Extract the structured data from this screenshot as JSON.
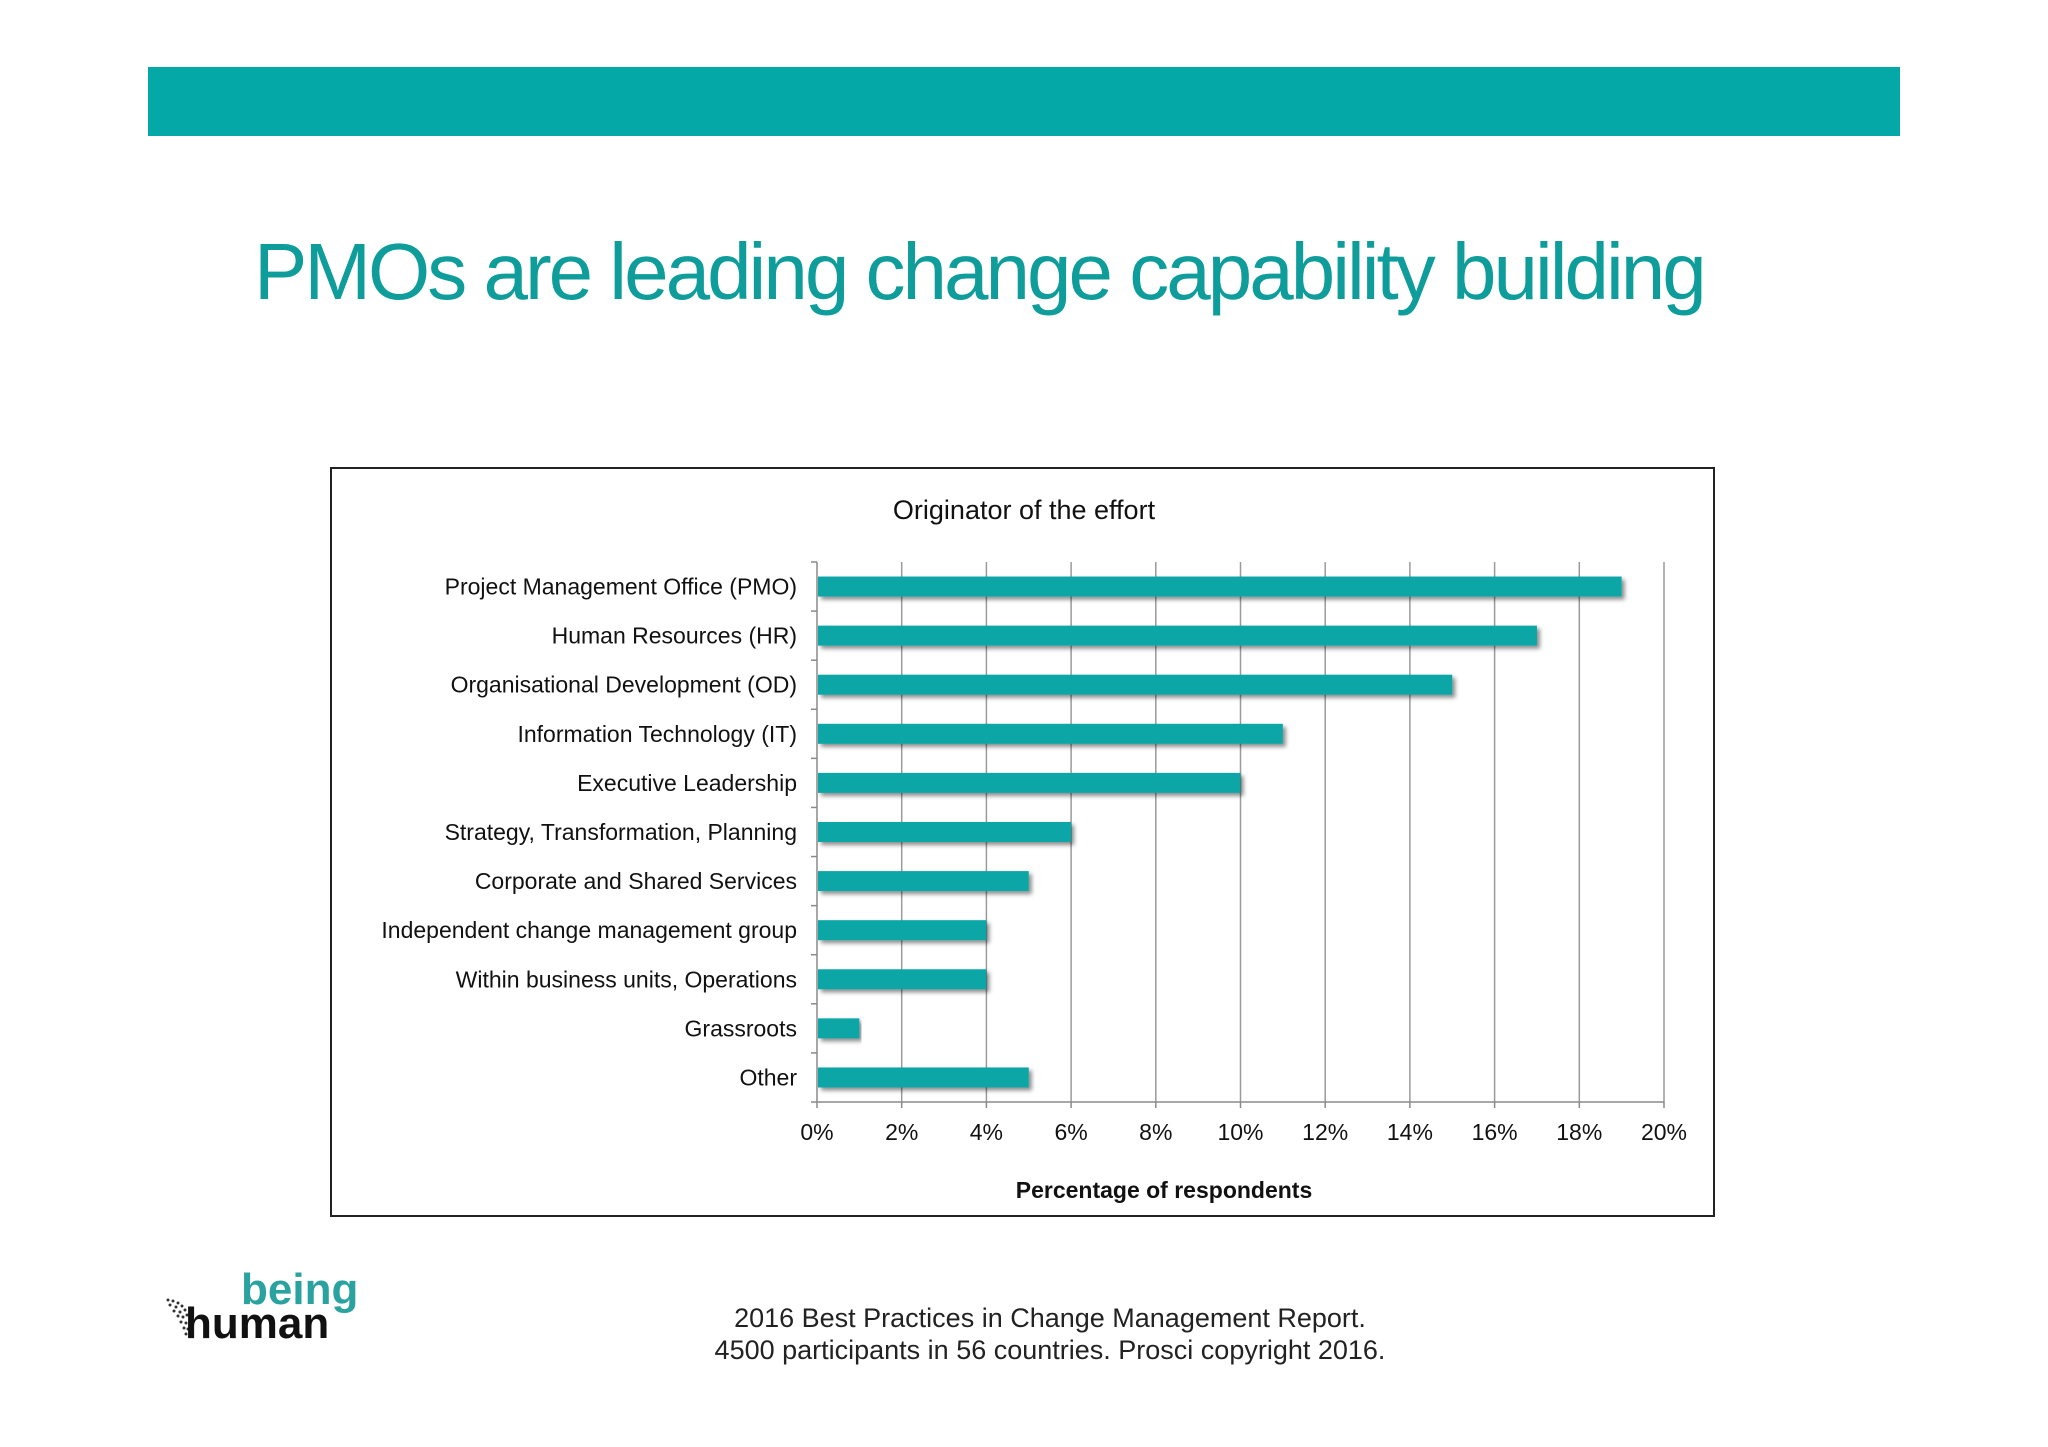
{
  "slide": {
    "title": "PMOs are leading change capability building",
    "accent_color": "#03a8a7",
    "title_color": "#0f9d9b"
  },
  "logo": {
    "word1": "being",
    "word2": "human"
  },
  "source": {
    "line1": "2016 Best Practices in Change Management Report.",
    "line2": "4500 participants in 56 countries.  Prosci copyright 2016."
  },
  "chart_data": {
    "type": "bar",
    "orientation": "horizontal",
    "title": "Originator of the effort",
    "xlabel": "Percentage of respondents",
    "ylabel": "",
    "categories": [
      "Project Management Office (PMO)",
      "Human Resources (HR)",
      "Organisational Development (OD)",
      "Information Technology (IT)",
      "Executive Leadership",
      "Strategy, Transformation, Planning",
      "Corporate and Shared Services",
      "Independent change management group ",
      "Within business units, Operations",
      "Grassroots",
      "Other"
    ],
    "values": [
      19,
      17,
      15,
      11,
      10,
      6,
      5,
      4,
      4,
      1,
      5
    ],
    "xlim": [
      0,
      20
    ],
    "xticks": [
      0,
      2,
      4,
      6,
      8,
      10,
      12,
      14,
      16,
      18,
      20
    ],
    "xtick_labels": [
      "0%",
      "2%",
      "4%",
      "6%",
      "8%",
      "10%",
      "12%",
      "14%",
      "16%",
      "18%",
      "20%"
    ],
    "grid": true,
    "legend": "none",
    "bar_color": "#0aa6a6"
  }
}
